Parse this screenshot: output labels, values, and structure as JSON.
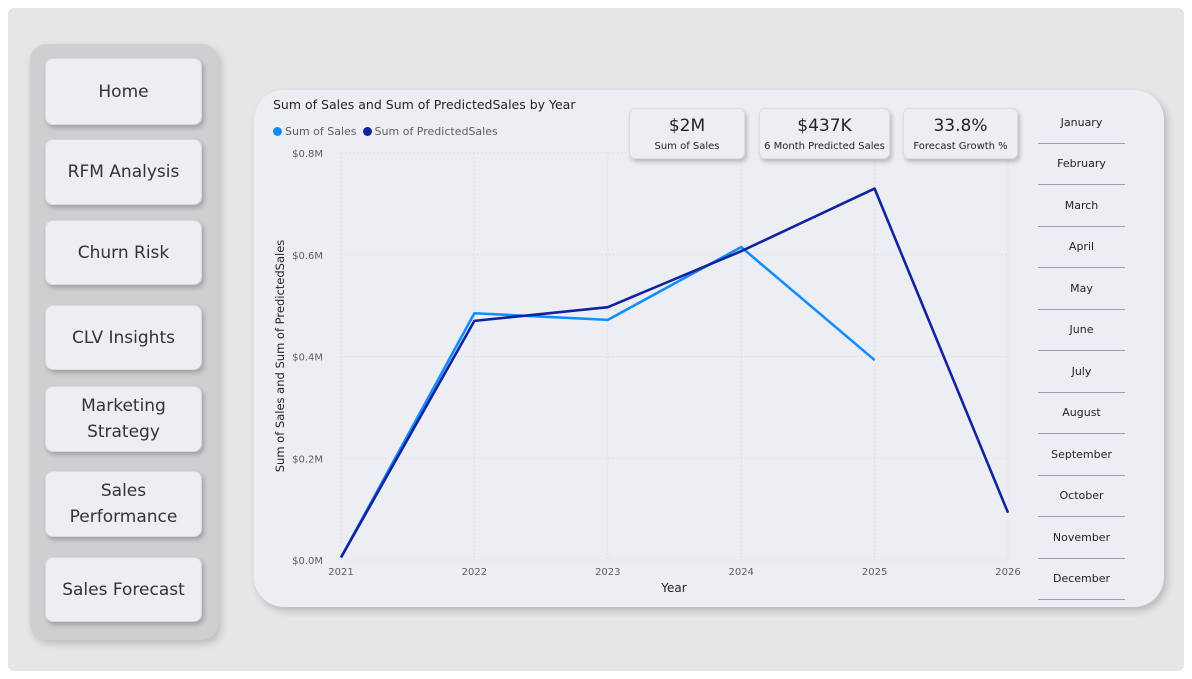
{
  "nav": {
    "items": [
      {
        "label": "Home"
      },
      {
        "label": "RFM Analysis"
      },
      {
        "label": "Churn Risk"
      },
      {
        "label": "CLV Insights"
      },
      {
        "label": "Marketing\nStrategy"
      },
      {
        "label": "Sales\nPerformance"
      },
      {
        "label": "Sales Forecast"
      }
    ]
  },
  "kpis": [
    {
      "value": "$2M",
      "label": "Sum of Sales"
    },
    {
      "value": "$437K",
      "label": "6 Month Predicted Sales"
    },
    {
      "value": "33.8%",
      "label": "Forecast Growth %"
    }
  ],
  "months": [
    "January",
    "February",
    "March",
    "April",
    "May",
    "June",
    "July",
    "August",
    "September",
    "October",
    "November",
    "December"
  ],
  "colors": {
    "sales": "#118dff",
    "predicted": "#12239e"
  },
  "chart_data": {
    "type": "line",
    "title": "Sum of Sales and Sum of PredictedSales by Year",
    "xlabel": "Year",
    "ylabel": "Sum of Sales and Sum of PredictedSales",
    "x": [
      "2021",
      "2022",
      "2023",
      "2024",
      "2025",
      "2026"
    ],
    "ylim": [
      0,
      0.8
    ],
    "yticks": [
      "$0.0M",
      "$0.2M",
      "$0.4M",
      "$0.6M",
      "$0.8M"
    ],
    "legend_position": "top-left",
    "grid": true,
    "series": [
      {
        "name": "Sum of Sales",
        "values": [
          0.005,
          0.485,
          0.472,
          0.615,
          0.393,
          null
        ]
      },
      {
        "name": "Sum of PredictedSales",
        "values": [
          0.005,
          0.47,
          0.497,
          0.607,
          0.73,
          0.093
        ]
      }
    ]
  }
}
